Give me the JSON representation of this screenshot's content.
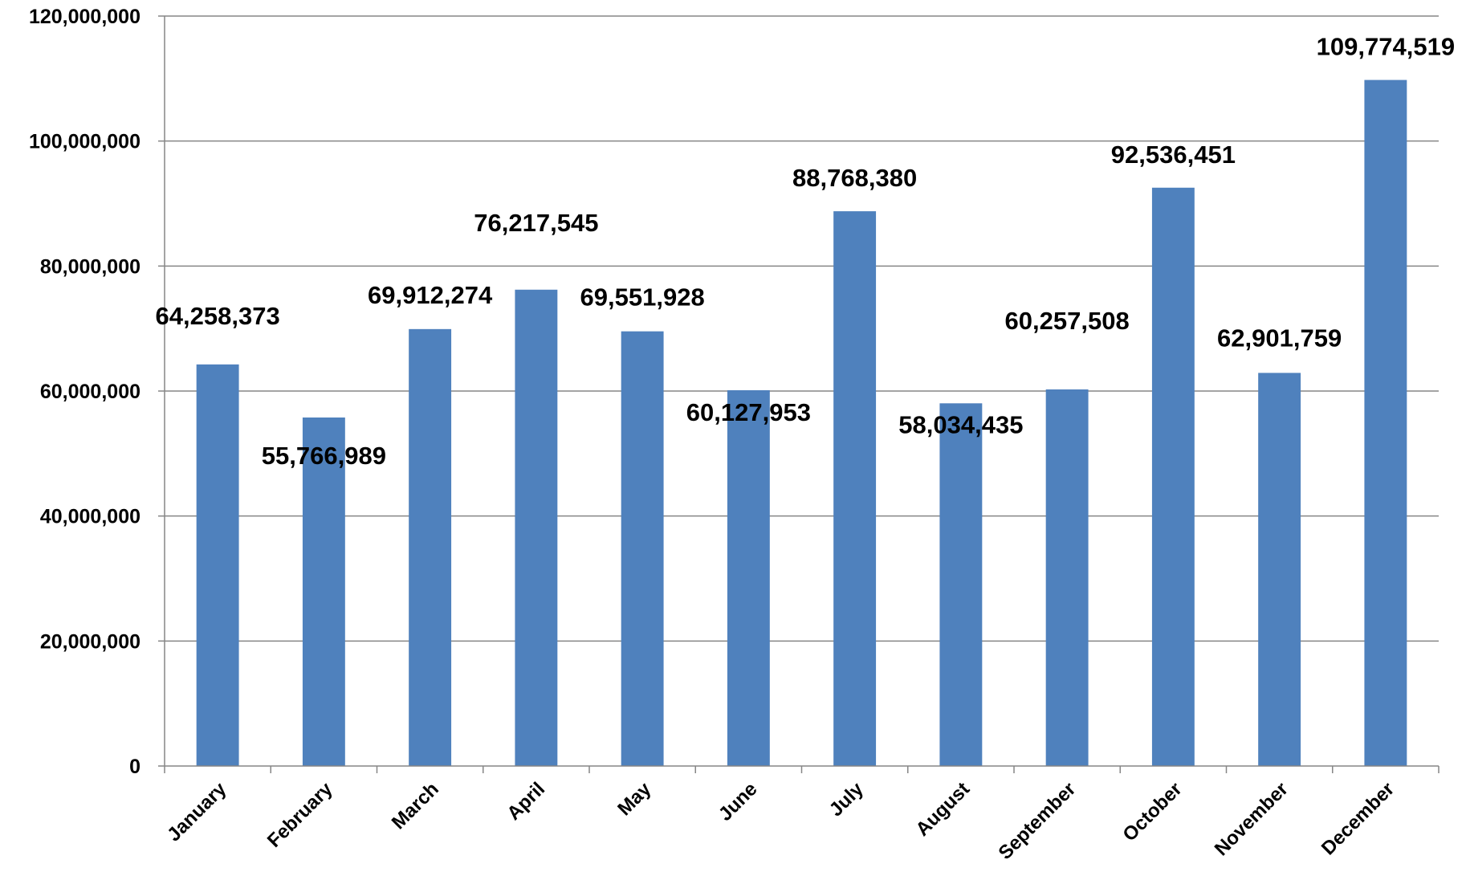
{
  "chart_data": {
    "type": "bar",
    "title": "",
    "xlabel": "",
    "ylabel": "",
    "categories": [
      "January",
      "February",
      "March",
      "April",
      "May",
      "June",
      "July",
      "August",
      "September",
      "October",
      "November",
      "December"
    ],
    "values": [
      64258373,
      55766989,
      69912274,
      76217545,
      69551928,
      60127953,
      88768380,
      58034435,
      60257508,
      92536451,
      62901759,
      109774519
    ],
    "data_labels": [
      "64,258,373",
      "55,766,989",
      "69,912,274",
      "76,217,545",
      "69,551,928",
      "60,127,953",
      "88,768,380",
      "58,034,435",
      "60,257,508",
      "92,536,451",
      "62,901,759",
      "109,774,519"
    ],
    "ylim": [
      0,
      120000000
    ],
    "yticks": [
      0,
      20000000,
      40000000,
      60000000,
      80000000,
      100000000,
      120000000
    ],
    "ytick_labels": [
      "0",
      "20,000,000",
      "40,000,000",
      "60,000,000",
      "80,000,000",
      "100,000,000",
      "120,000,000"
    ],
    "grid": true,
    "legend": "none",
    "colors": {
      "bar": "#4F81BD",
      "grid": "#868686",
      "axis": "#868686",
      "text": "#000000"
    }
  }
}
